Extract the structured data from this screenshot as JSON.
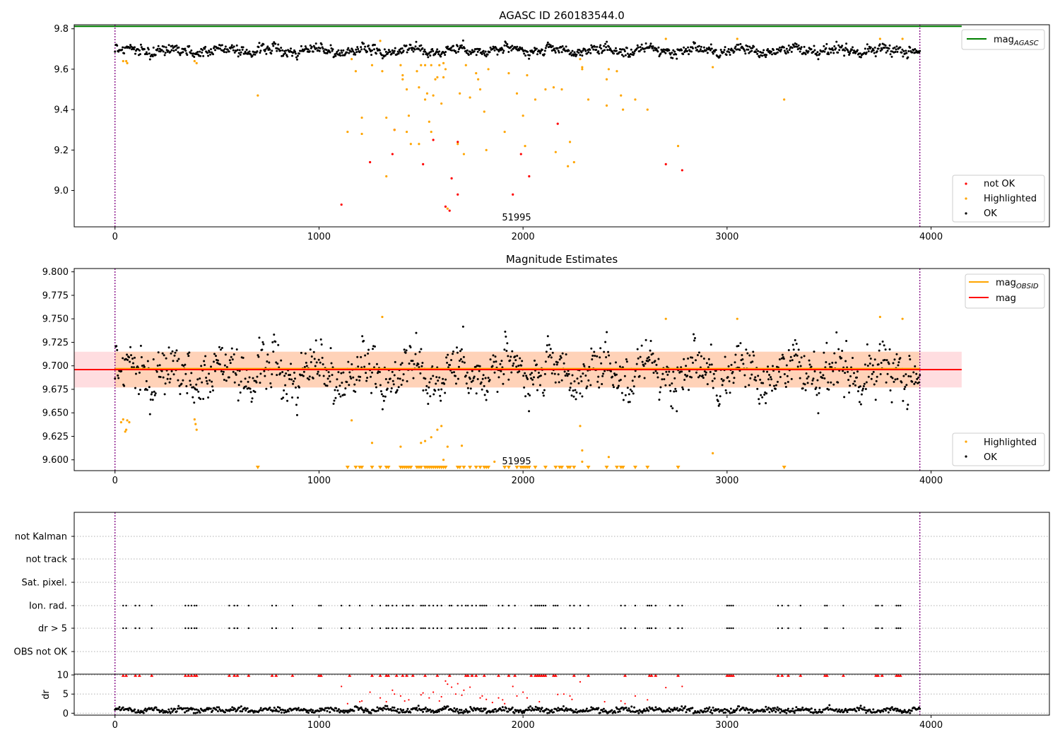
{
  "chart_data": [
    {
      "id": "top",
      "type": "scatter",
      "title": "AGASC ID 260183544.0",
      "xlim": [
        -200,
        4580
      ],
      "ylim": [
        8.82,
        9.82
      ],
      "xticks": [
        0,
        1000,
        2000,
        3000,
        4000
      ],
      "yticks": [
        9.0,
        9.2,
        9.4,
        9.6,
        9.8
      ],
      "ytick_labels": [
        "9.0",
        "9.2",
        "9.4",
        "9.6",
        "9.8"
      ],
      "vlines": [
        0,
        3945
      ],
      "hline": {
        "name": "mag",
        "subscript": "AGASC",
        "y": 9.812,
        "color": "#008000"
      },
      "annotation": {
        "text": "51995",
        "x": 1970,
        "y": 8.87
      },
      "series": [
        {
          "name": "not OK",
          "color": "#ff0000",
          "points": [
            [
              1110,
              8.93
            ],
            [
              1250,
              9.14
            ],
            [
              1360,
              9.18
            ],
            [
              1370,
              9.3
            ],
            [
              1510,
              9.13
            ],
            [
              1560,
              9.25
            ],
            [
              1620,
              8.92
            ],
            [
              1640,
              8.9
            ],
            [
              1650,
              9.06
            ],
            [
              1680,
              8.98
            ],
            [
              1680,
              9.24
            ],
            [
              1950,
              8.98
            ],
            [
              1990,
              9.18
            ],
            [
              2030,
              9.07
            ],
            [
              2170,
              9.33
            ],
            [
              2700,
              9.13
            ],
            [
              2780,
              9.1
            ]
          ]
        },
        {
          "name": "Highlighted",
          "color": "#ffa500",
          "points": [
            [
              700,
              9.47
            ],
            [
              1140,
              9.29
            ],
            [
              1160,
              9.65
            ],
            [
              1180,
              9.59
            ],
            [
              1210,
              9.28
            ],
            [
              1210,
              9.36
            ],
            [
              1260,
              9.62
            ],
            [
              1300,
              9.74
            ],
            [
              1310,
              9.59
            ],
            [
              1330,
              9.07
            ],
            [
              1330,
              9.36
            ],
            [
              1370,
              9.3
            ],
            [
              1400,
              9.62
            ],
            [
              1410,
              9.55
            ],
            [
              1410,
              9.57
            ],
            [
              1430,
              9.5
            ],
            [
              1430,
              9.29
            ],
            [
              1440,
              9.37
            ],
            [
              1450,
              9.23
            ],
            [
              1480,
              9.59
            ],
            [
              1490,
              9.23
            ],
            [
              1490,
              9.51
            ],
            [
              1500,
              9.62
            ],
            [
              1520,
              9.62
            ],
            [
              1520,
              9.45
            ],
            [
              1530,
              9.48
            ],
            [
              1540,
              9.34
            ],
            [
              1550,
              9.29
            ],
            [
              1550,
              9.62
            ],
            [
              1560,
              9.47
            ],
            [
              1570,
              9.55
            ],
            [
              1580,
              9.56
            ],
            [
              1590,
              9.62
            ],
            [
              1600,
              9.43
            ],
            [
              1610,
              9.63
            ],
            [
              1610,
              9.56
            ],
            [
              1620,
              9.6
            ],
            [
              1630,
              8.91
            ],
            [
              1680,
              9.23
            ],
            [
              1690,
              9.48
            ],
            [
              1710,
              9.18
            ],
            [
              1720,
              9.62
            ],
            [
              1740,
              9.46
            ],
            [
              1770,
              9.58
            ],
            [
              1780,
              9.55
            ],
            [
              1790,
              9.5
            ],
            [
              1810,
              9.39
            ],
            [
              1820,
              9.2
            ],
            [
              1830,
              9.6
            ],
            [
              1910,
              9.29
            ],
            [
              1930,
              9.58
            ],
            [
              1970,
              9.48
            ],
            [
              2000,
              9.37
            ],
            [
              2010,
              9.22
            ],
            [
              2020,
              9.57
            ],
            [
              2060,
              9.45
            ],
            [
              2110,
              9.5
            ],
            [
              2150,
              9.51
            ],
            [
              2160,
              9.19
            ],
            [
              2190,
              9.5
            ],
            [
              2220,
              9.12
            ],
            [
              2230,
              9.24
            ],
            [
              2250,
              9.14
            ],
            [
              2280,
              9.65
            ],
            [
              2290,
              9.6
            ],
            [
              2290,
              9.61
            ],
            [
              2320,
              9.45
            ],
            [
              2410,
              9.55
            ],
            [
              2410,
              9.42
            ],
            [
              2420,
              9.6
            ],
            [
              2460,
              9.59
            ],
            [
              2480,
              9.47
            ],
            [
              2490,
              9.4
            ],
            [
              2550,
              9.45
            ],
            [
              2610,
              9.4
            ],
            [
              2700,
              9.75
            ],
            [
              2760,
              9.22
            ],
            [
              2930,
              9.61
            ],
            [
              3050,
              9.75
            ],
            [
              3280,
              9.45
            ],
            [
              3750,
              9.75
            ],
            [
              3860,
              9.75
            ],
            [
              40,
              9.64
            ],
            [
              55,
              9.64
            ],
            [
              60,
              9.63
            ],
            [
              390,
              9.64
            ],
            [
              400,
              9.63
            ]
          ]
        }
      ],
      "ok_series": {
        "name": "OK",
        "color": "#000000",
        "x_start": 0,
        "x_end": 3945,
        "count": 1150
      },
      "legend_upper": [
        "mag_AGASC"
      ],
      "legend_lower": [
        "not OK",
        "Highlighted",
        "OK"
      ]
    },
    {
      "id": "middle",
      "type": "scatter",
      "title": "Magnitude Estimates",
      "xlim": [
        -200,
        4580
      ],
      "ylim": [
        9.5885,
        9.8035
      ],
      "xticks": [
        0,
        1000,
        2000,
        3000,
        4000
      ],
      "yticks": [
        9.6,
        9.625,
        9.65,
        9.675,
        9.7,
        9.725,
        9.75,
        9.775,
        9.8
      ],
      "ytick_labels": [
        "9.600",
        "9.625",
        "9.650",
        "9.675",
        "9.700",
        "9.725",
        "9.750",
        "9.775",
        "9.800"
      ],
      "vlines": [
        0,
        3945
      ],
      "band_agasc": {
        "x": [
          -200,
          4150
        ],
        "y": [
          9.677,
          9.715
        ],
        "color": "#ffdde0"
      },
      "band_obsid": {
        "x": [
          0,
          3945
        ],
        "y": [
          9.677,
          9.715
        ],
        "color": "#ffd2b8"
      },
      "mag_line": {
        "name": "mag",
        "y": 9.696,
        "color": "#ff0000"
      },
      "mag_obsid_line": {
        "name": "mag",
        "subscript": "OBSID",
        "y": 9.697,
        "color": "#ffa500"
      },
      "annotation": {
        "text": "51995",
        "x": 1970,
        "y": 9.595
      },
      "highlighted": {
        "name": "Highlighted",
        "color": "#ffa500",
        "points": [
          [
            30,
            9.64
          ],
          [
            40,
            9.643
          ],
          [
            50,
            9.63
          ],
          [
            55,
            9.632
          ],
          [
            60,
            9.642
          ],
          [
            70,
            9.64
          ],
          [
            390,
            9.643
          ],
          [
            395,
            9.638
          ],
          [
            400,
            9.632
          ],
          [
            1160,
            9.642
          ],
          [
            1260,
            9.618
          ],
          [
            1310,
            9.752
          ],
          [
            1400,
            9.614
          ],
          [
            1500,
            9.618
          ],
          [
            1520,
            9.62
          ],
          [
            1550,
            9.624
          ],
          [
            1580,
            9.632
          ],
          [
            1600,
            9.636
          ],
          [
            1610,
            9.6
          ],
          [
            1630,
            9.614
          ],
          [
            1700,
            9.615
          ],
          [
            1860,
            9.598
          ],
          [
            2280,
            9.636
          ],
          [
            2290,
            9.61
          ],
          [
            2290,
            9.598
          ],
          [
            2420,
            9.603
          ],
          [
            2700,
            9.75
          ],
          [
            2930,
            9.607
          ],
          [
            3050,
            9.75
          ],
          [
            3750,
            9.752
          ],
          [
            3860,
            9.75
          ]
        ]
      },
      "below_range": {
        "color": "#ffa500",
        "x": [
          700,
          1140,
          1180,
          1200,
          1210,
          1260,
          1300,
          1330,
          1340,
          1400,
          1410,
          1420,
          1430,
          1440,
          1450,
          1480,
          1490,
          1500,
          1520,
          1530,
          1540,
          1550,
          1560,
          1570,
          1580,
          1590,
          1600,
          1610,
          1620,
          1680,
          1690,
          1710,
          1740,
          1770,
          1790,
          1810,
          1820,
          1830,
          1910,
          1930,
          1970,
          1990,
          2000,
          2010,
          2020,
          2030,
          2060,
          2110,
          2160,
          2180,
          2190,
          2220,
          2230,
          2250,
          2320,
          2410,
          2460,
          2480,
          2490,
          2550,
          2610,
          2760,
          3280
        ]
      },
      "ok_series": {
        "name": "OK",
        "color": "#000000",
        "x_start": 0,
        "x_end": 3945,
        "count": 1150
      },
      "legend_upper": [
        "mag_OBSID",
        "mag"
      ],
      "legend_lower": [
        "Highlighted",
        "OK"
      ]
    },
    {
      "id": "flags",
      "type": "scatter",
      "xlim": [
        -200,
        4580
      ],
      "vlines": [
        0,
        3945
      ],
      "rows": [
        "not Kalman",
        "not track",
        "Sat. pixel.",
        "Ion. rad.",
        "dr > 5",
        "OBS not OK"
      ],
      "flag_x": [
        40,
        55,
        100,
        120,
        180,
        345,
        360,
        375,
        390,
        400,
        560,
        585,
        600,
        655,
        770,
        790,
        870,
        1000,
        1010,
        1110,
        1150,
        1200,
        1260,
        1300,
        1330,
        1340,
        1360,
        1380,
        1410,
        1430,
        1440,
        1460,
        1500,
        1510,
        1520,
        1540,
        1560,
        1580,
        1600,
        1640,
        1650,
        1680,
        1700,
        1720,
        1730,
        1750,
        1770,
        1790,
        1800,
        1810,
        1820,
        1880,
        1900,
        1930,
        1960,
        2040,
        2060,
        2070,
        2080,
        2090,
        2100,
        2110,
        2150,
        2160,
        2170,
        2230,
        2250,
        2280,
        2320,
        2480,
        2500,
        2550,
        2610,
        2620,
        2630,
        2650,
        2720,
        2760,
        2780,
        3000,
        3010,
        3020,
        3030,
        3250,
        3270,
        3300,
        3360,
        3480,
        3490,
        3570,
        3730,
        3740,
        3760,
        3830,
        3840,
        3850
      ]
    },
    {
      "id": "dr",
      "type": "scatter",
      "ylabel": "dr",
      "xlim": [
        -200,
        4580
      ],
      "ylim": [
        -0.5,
        10.2
      ],
      "xticks": [
        0,
        1000,
        2000,
        3000,
        4000
      ],
      "yticks": [
        0,
        5,
        10
      ],
      "vlines": [
        0,
        3945
      ],
      "dr_x_start": 0,
      "dr_x_end": 3945,
      "red_points": [
        [
          1110,
          7
        ],
        [
          1140,
          2.5
        ],
        [
          1200,
          3
        ],
        [
          1210,
          3.2
        ],
        [
          1250,
          5.5
        ],
        [
          1300,
          4
        ],
        [
          1330,
          3
        ],
        [
          1360,
          6
        ],
        [
          1370,
          5
        ],
        [
          1400,
          4.5
        ],
        [
          1420,
          3.2
        ],
        [
          1440,
          3.5
        ],
        [
          1500,
          4.8
        ],
        [
          1510,
          5.3
        ],
        [
          1540,
          4
        ],
        [
          1560,
          5.5
        ],
        [
          1600,
          4.3
        ],
        [
          1620,
          8.4
        ],
        [
          1630,
          7.6
        ],
        [
          1650,
          6.8
        ],
        [
          1670,
          5
        ],
        [
          1680,
          7.7
        ],
        [
          1700,
          4.7
        ],
        [
          1710,
          6
        ],
        [
          1740,
          6.8
        ],
        [
          1790,
          4
        ],
        [
          1800,
          4.5
        ],
        [
          1820,
          3.6
        ],
        [
          1850,
          2.8
        ],
        [
          1880,
          4
        ],
        [
          1900,
          3.5
        ],
        [
          1950,
          7
        ],
        [
          1970,
          4.5
        ],
        [
          2000,
          5.5
        ],
        [
          2020,
          4
        ],
        [
          2080,
          3
        ],
        [
          2170,
          4.9
        ],
        [
          2200,
          5
        ],
        [
          2230,
          4.5
        ],
        [
          2240,
          3.6
        ],
        [
          2280,
          8.2
        ],
        [
          2400,
          3
        ],
        [
          2480,
          3.2
        ],
        [
          2500,
          2.5
        ],
        [
          2550,
          4.5
        ],
        [
          2610,
          3.5
        ],
        [
          2700,
          6.7
        ],
        [
          2780,
          7
        ],
        [
          1910,
          2.5
        ],
        [
          1590,
          3.2
        ]
      ],
      "red_top_x": [
        40,
        55,
        100,
        120,
        180,
        345,
        360,
        375,
        390,
        400,
        560,
        585,
        600,
        655,
        770,
        790,
        870,
        1000,
        1010,
        1150,
        1260,
        1300,
        1330,
        1340,
        1380,
        1410,
        1430,
        1460,
        1520,
        1580,
        1640,
        1720,
        1730,
        1750,
        1770,
        1810,
        1880,
        1930,
        1960,
        2040,
        2060,
        2070,
        2080,
        2090,
        2100,
        2110,
        2150,
        2160,
        2250,
        2320,
        2500,
        2620,
        2630,
        2650,
        2760,
        3000,
        3010,
        3020,
        3030,
        3250,
        3270,
        3300,
        3360,
        3480,
        3490,
        3570,
        3730,
        3740,
        3760,
        3830,
        3840,
        3850
      ]
    }
  ]
}
